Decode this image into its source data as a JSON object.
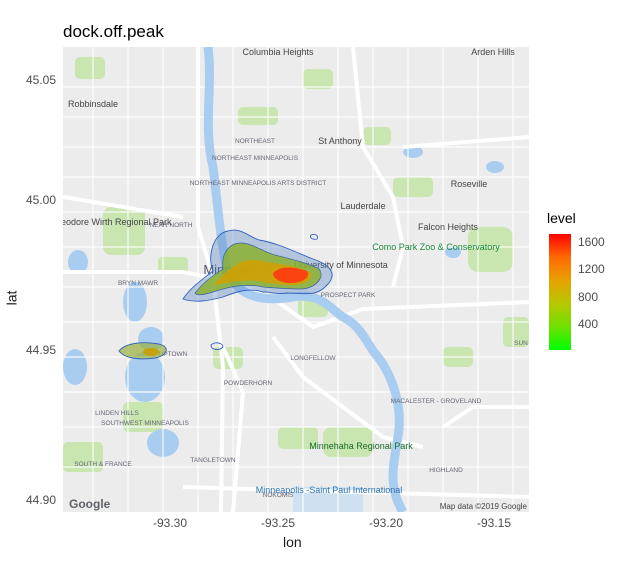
{
  "chart_data": {
    "type": "heatmap",
    "title": "dock.off.peak",
    "xlabel": "lon",
    "ylabel": "lat",
    "xlim": [
      -93.335,
      -93.128
    ],
    "ylim": [
      44.898,
      45.05
    ],
    "x_ticks": [
      "-93.30",
      "-93.25",
      "-93.20",
      "-93.15"
    ],
    "y_ticks": [
      "44.90",
      "44.95",
      "45.00",
      "45.05"
    ],
    "legend": {
      "title": "level",
      "ticks": [
        "1600",
        "1200",
        "800",
        "400"
      ],
      "colors": [
        "#00ff00",
        "#ff0000"
      ],
      "position": "right"
    },
    "hotspots": [
      {
        "lon": -93.235,
        "lat": 44.975,
        "level": 1700
      },
      {
        "lon": -93.262,
        "lat": 44.978,
        "level": 800
      },
      {
        "lon": -93.311,
        "lat": 44.949,
        "level": 500
      }
    ]
  },
  "basemap": {
    "labels": [
      "Columbia Heights",
      "Arden Hills",
      "Robbinsdale",
      "St Anthony",
      "NORTHEAST MINNEAPOLIS",
      "NORTHEAST MINNEAPOLIS ARTS DISTRICT",
      "Roseville",
      "Lauderdale",
      "Theodore Wirth Regional Park",
      "NEAR NORTH",
      "Falcon Heights",
      "Como Park Zoo & Conservatory",
      "Minneapolis",
      "University of Minnesota",
      "PROSPECT PARK",
      "BRYN MAWR",
      "LONGFELLOW",
      "POWDERHORN",
      "MACALESTER - GROVELAND",
      "LINDEN HILLS",
      "SOUTHWEST MINNEAPOLIS",
      "Minnehaha Regional Park",
      "SOUTH & FRANCE",
      "TANGLETOWN",
      "HIGHLAND",
      "NOKOMIS",
      "Minneapolis -Saint Paul International",
      "UPTOWN",
      "SUN"
    ],
    "logo": "Google",
    "attribution": "Map data ©2019 Google"
  }
}
